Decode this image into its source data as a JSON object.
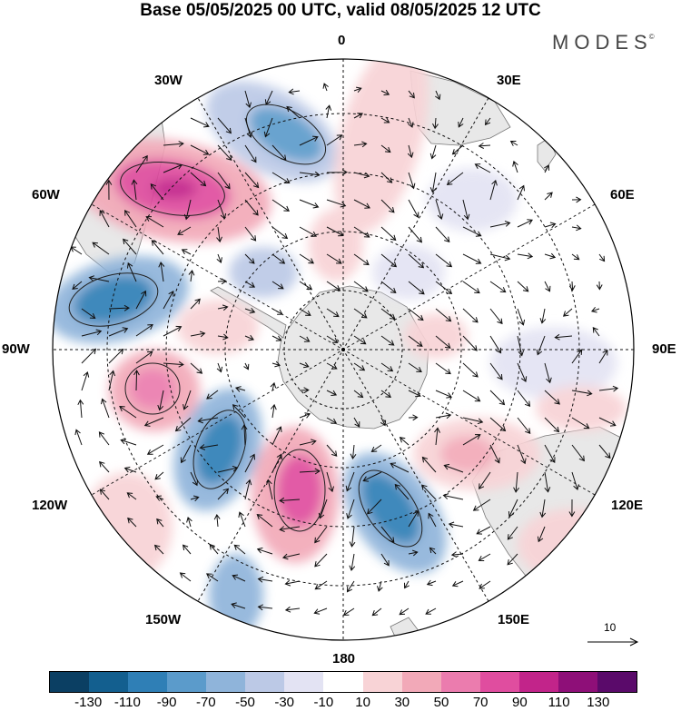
{
  "title": "Base 05/05/2025 00 UTC, valid 08/05/2025 12 UTC",
  "brand": "MODES",
  "brand_mark": "©",
  "longitude_labels": {
    "lon_0": "0",
    "lon_30e": "30E",
    "lon_60e": "60E",
    "lon_90e": "90E",
    "lon_120e": "120E",
    "lon_150e": "150E",
    "lon_180": "180",
    "lon_150w": "150W",
    "lon_120w": "120W",
    "lon_90w": "90W",
    "lon_60w": "60W",
    "lon_30w": "30W"
  },
  "reference_vector": {
    "value": "10",
    "arrow": "arrow-right-icon"
  },
  "colorbar": {
    "colors": [
      "#0b3f63",
      "#135f8f",
      "#2f7fb6",
      "#5b9bcb",
      "#8fb4da",
      "#bcc9e6",
      "#e3e3f3",
      "#ffffff",
      "#f8d3d6",
      "#f2a9b8",
      "#eb7cae",
      "#e04d9f",
      "#c2248a",
      "#8e0f78",
      "#5a0a6a"
    ],
    "ticks": [
      "-130",
      "-110",
      "-90",
      "-70",
      "-50",
      "-30",
      "-10",
      "10",
      "30",
      "50",
      "70",
      "90",
      "110",
      "130"
    ]
  },
  "map_colors": {
    "ocean": "#ffffff",
    "land": "#e8e8e8",
    "coast": "#777777"
  }
}
